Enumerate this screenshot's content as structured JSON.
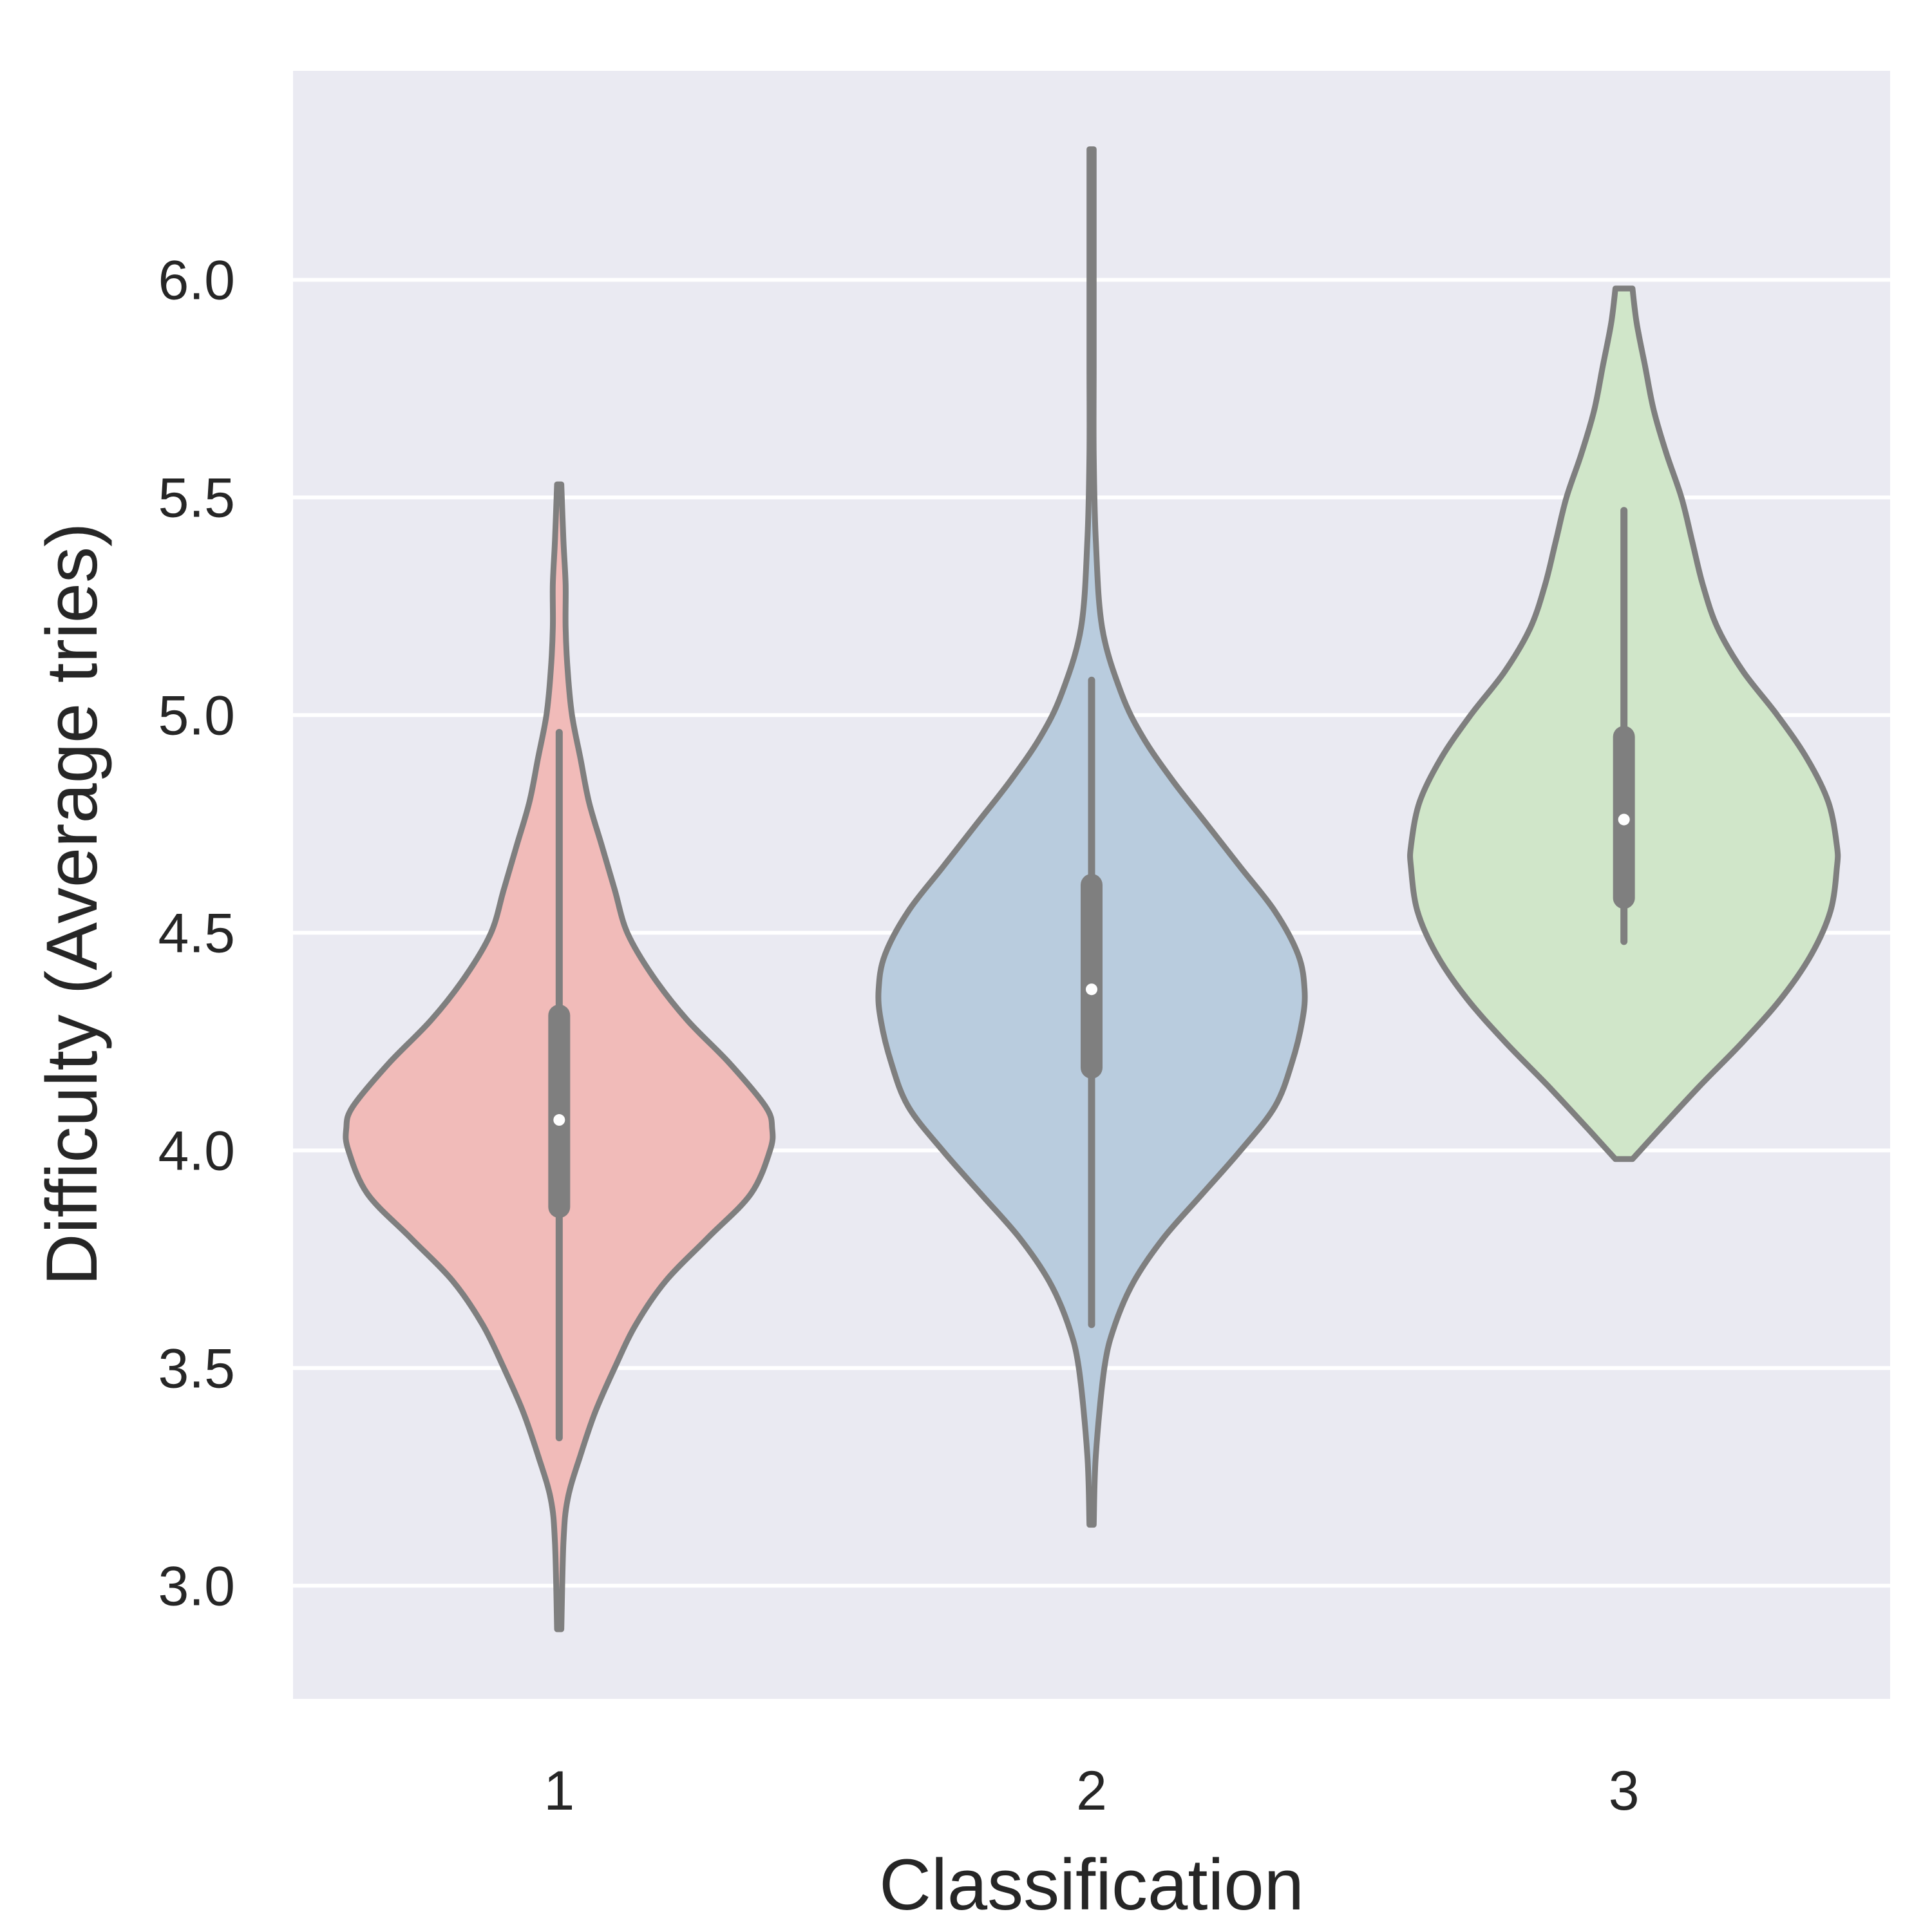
{
  "chart_data": {
    "type": "violin",
    "title": "",
    "xlabel": "Classification",
    "ylabel": "Difficulty (Average tries)",
    "ylim": [
      2.74,
      6.48
    ],
    "yticks": [
      3.0,
      3.5,
      4.0,
      4.5,
      5.0,
      5.5,
      6.0
    ],
    "ytick_labels": [
      "3.0",
      "3.5",
      "4.0",
      "4.5",
      "5.0",
      "5.5",
      "6.0"
    ],
    "categories": [
      "1",
      "2",
      "3"
    ],
    "grid": "horizontal",
    "background_color": "#eaeaf2",
    "grid_color": "#ffffff",
    "outline_color": "#7f7f7f",
    "text_color": "#262626",
    "violins": [
      {
        "category": "1",
        "color": "#f1bbb9",
        "min": 2.9,
        "max": 5.53,
        "q1": 3.87,
        "median": 4.07,
        "q3": 4.31,
        "whisker_low": 3.34,
        "whisker_high": 4.96,
        "density_profile": [
          [
            2.9,
            0.01
          ],
          [
            3.1,
            0.02
          ],
          [
            3.2,
            0.04
          ],
          [
            3.3,
            0.1
          ],
          [
            3.4,
            0.17
          ],
          [
            3.5,
            0.26
          ],
          [
            3.6,
            0.36
          ],
          [
            3.7,
            0.5
          ],
          [
            3.8,
            0.7
          ],
          [
            3.9,
            0.9
          ],
          [
            4.0,
            0.99
          ],
          [
            4.05,
            1.0
          ],
          [
            4.1,
            0.97
          ],
          [
            4.2,
            0.8
          ],
          [
            4.3,
            0.6
          ],
          [
            4.4,
            0.44
          ],
          [
            4.5,
            0.32
          ],
          [
            4.6,
            0.26
          ],
          [
            4.7,
            0.2
          ],
          [
            4.8,
            0.14
          ],
          [
            4.9,
            0.1
          ],
          [
            5.0,
            0.06
          ],
          [
            5.1,
            0.04
          ],
          [
            5.2,
            0.03
          ],
          [
            5.3,
            0.03
          ],
          [
            5.4,
            0.02
          ],
          [
            5.53,
            0.01
          ]
        ]
      },
      {
        "category": "2",
        "color": "#b9ccde",
        "min": 3.14,
        "max": 6.3,
        "q1": 4.19,
        "median": 4.37,
        "q3": 4.61,
        "whisker_low": 3.6,
        "whisker_high": 5.08,
        "density_profile": [
          [
            3.14,
            0.01
          ],
          [
            3.3,
            0.02
          ],
          [
            3.5,
            0.06
          ],
          [
            3.6,
            0.11
          ],
          [
            3.7,
            0.2
          ],
          [
            3.8,
            0.34
          ],
          [
            3.9,
            0.52
          ],
          [
            4.0,
            0.7
          ],
          [
            4.1,
            0.86
          ],
          [
            4.2,
            0.94
          ],
          [
            4.3,
            0.99
          ],
          [
            4.37,
            1.0
          ],
          [
            4.45,
            0.97
          ],
          [
            4.55,
            0.86
          ],
          [
            4.65,
            0.7
          ],
          [
            4.75,
            0.54
          ],
          [
            4.85,
            0.38
          ],
          [
            4.95,
            0.24
          ],
          [
            5.05,
            0.14
          ],
          [
            5.2,
            0.05
          ],
          [
            5.4,
            0.02
          ],
          [
            5.6,
            0.01
          ],
          [
            5.8,
            0.01
          ],
          [
            6.0,
            0.01
          ],
          [
            6.3,
            0.01
          ]
        ]
      },
      {
        "category": "3",
        "color": "#d0e6c9",
        "min": 3.98,
        "max": 5.98,
        "q1": 4.58,
        "median": 4.76,
        "q3": 4.95,
        "whisker_low": 4.48,
        "whisker_high": 5.47,
        "density_profile": [
          [
            3.98,
            0.04
          ],
          [
            4.05,
            0.17
          ],
          [
            4.15,
            0.36
          ],
          [
            4.25,
            0.56
          ],
          [
            4.35,
            0.74
          ],
          [
            4.45,
            0.88
          ],
          [
            4.55,
            0.97
          ],
          [
            4.65,
            1.0
          ],
          [
            4.7,
            1.0
          ],
          [
            4.8,
            0.96
          ],
          [
            4.9,
            0.86
          ],
          [
            5.0,
            0.72
          ],
          [
            5.1,
            0.56
          ],
          [
            5.2,
            0.44
          ],
          [
            5.3,
            0.37
          ],
          [
            5.4,
            0.32
          ],
          [
            5.5,
            0.27
          ],
          [
            5.6,
            0.2
          ],
          [
            5.7,
            0.14
          ],
          [
            5.8,
            0.1
          ],
          [
            5.9,
            0.06
          ],
          [
            5.98,
            0.04
          ]
        ]
      }
    ]
  }
}
